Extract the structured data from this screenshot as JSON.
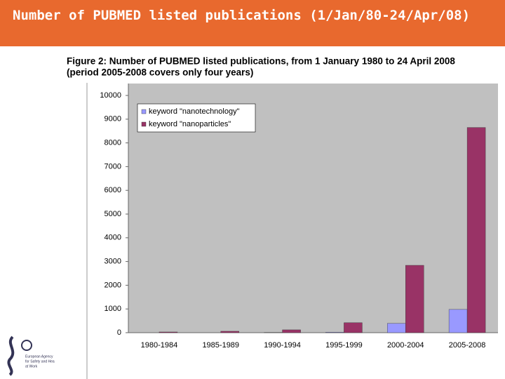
{
  "slide": {
    "title": "Number of PUBMED listed publications (1/Jan/80-24/Apr/08)"
  },
  "logo": {
    "lines": [
      "European Agency",
      "for Safety and Hea",
      "at Work"
    ]
  },
  "chart_data": {
    "type": "bar",
    "caption": [
      "Figure 2:  Number of PUBMED listed publications, from 1 January 1980 to 24 April 2008",
      "(period 2005-2008 covers only four years)"
    ],
    "categories": [
      "1980-1984",
      "1985-1989",
      "1990-1994",
      "1995-1999",
      "2000-2004",
      "2005-2008"
    ],
    "series": [
      {
        "name": "keyword \"nanotechnology\"",
        "color": "#9999ff",
        "values": [
          0,
          0,
          10,
          20,
          390,
          980
        ]
      },
      {
        "name": "keyword \"nanoparticles\"",
        "color": "#993366",
        "values": [
          30,
          60,
          120,
          420,
          2840,
          8650
        ]
      }
    ],
    "ylim": [
      0,
      10000
    ],
    "yticks": [
      0,
      1000,
      2000,
      3000,
      4000,
      5000,
      6000,
      7000,
      8000,
      9000,
      10000
    ],
    "grid": false,
    "legend": "top-left"
  }
}
